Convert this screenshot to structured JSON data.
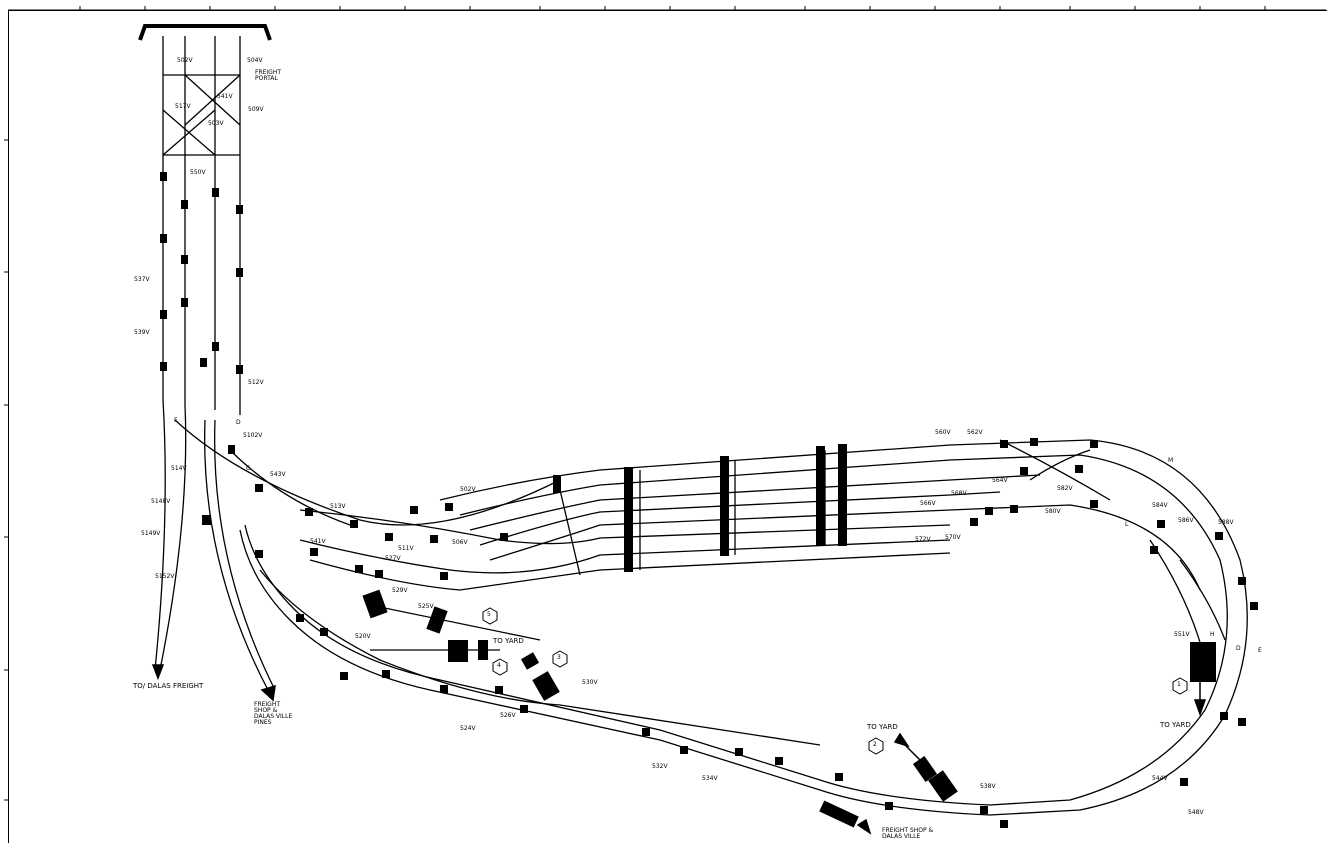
{
  "labels": {
    "freight_portal": "FREIGHT PORTAL",
    "to_dallas_freight": "TO/ DALAS FREIGHT",
    "freight_shop_1": "FREIGHT SHOP & DALAS VILLE PINES",
    "freight_shop_2": "FREIGHT SHOP & DALAS VILLE",
    "to_yard_1": "TO YARD",
    "to_yard_2": "TO YARD",
    "to_yard_3": "TO YARD"
  },
  "markers": [
    "5",
    "4",
    "3",
    "1",
    "2"
  ],
  "track_letters": [
    "D",
    "F",
    "G",
    "L",
    "M",
    "H",
    "D",
    "E"
  ],
  "switches": [
    "502V",
    "504V",
    "517V",
    "541V",
    "509V",
    "503V",
    "550V",
    "537V",
    "539V",
    "512V",
    "5102V",
    "514V",
    "543V",
    "5148V",
    "5149V",
    "5152V",
    "513V",
    "511V",
    "527V",
    "529V",
    "502V",
    "541V",
    "506V",
    "525V",
    "520V",
    "524V",
    "526V",
    "530V",
    "532V",
    "534V",
    "560V",
    "562V",
    "564V",
    "566V",
    "568V",
    "570V",
    "572V",
    "580V",
    "582V",
    "584V",
    "586V",
    "588V",
    "551V",
    "538V",
    "544V",
    "548V"
  ]
}
